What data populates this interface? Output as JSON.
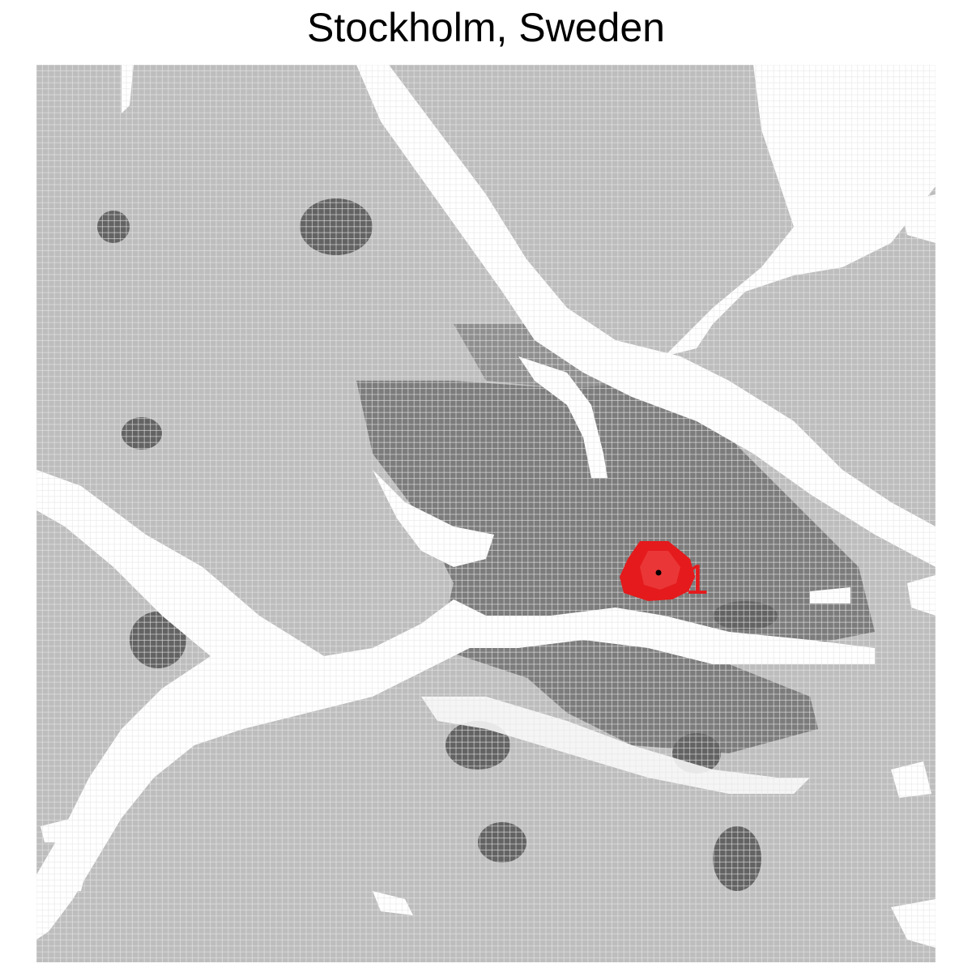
{
  "map": {
    "title": "Stockholm, Sweden",
    "marker_label": "1",
    "colors": {
      "background": "#ffffff",
      "water": "#ffffff",
      "land_light": "#bdbdbd",
      "land_mid": "#a5a5a5",
      "urban": "#7c7c7c",
      "urban_dense": "#636363",
      "highlight": "#e41a1c",
      "highlight_light": "#ef4f4f",
      "center_point": "#000000",
      "cell_grid": "#e6e6e6"
    }
  }
}
